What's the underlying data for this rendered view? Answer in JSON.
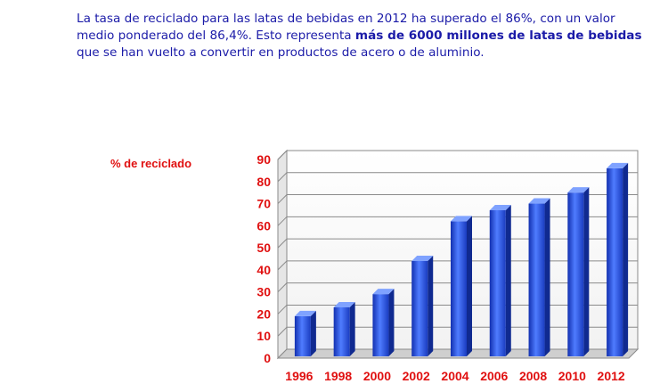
{
  "intro": {
    "part1": "La  tasa de reciclado para las latas de bebidas en 2012 ha superado el 86%, con un valor medio ponderado del 86,4%. Esto representa ",
    "bold": "más de 6000 millones de latas de bebidas",
    "part2": " que se han vuelto a convertir en productos de acero o de aluminio."
  },
  "colors": {
    "text": "#1b1ba8",
    "axis_labels": "#e01010",
    "bar": "#2a4fd8"
  },
  "chart_data": {
    "type": "bar",
    "title": "",
    "xlabel": "",
    "ylabel": "% de reciclado",
    "categories": [
      "1996",
      "1998",
      "2000",
      "2002",
      "2004",
      "2006",
      "2008",
      "2010",
      "2012"
    ],
    "values": [
      19,
      23,
      29,
      44,
      62,
      67,
      70,
      75,
      86
    ],
    "ylim": [
      0,
      90
    ],
    "yticks": [
      "0",
      "10",
      "20",
      "30",
      "40",
      "50",
      "60",
      "70",
      "80",
      "90"
    ],
    "grid": true,
    "legend": "none",
    "style": "3d"
  }
}
